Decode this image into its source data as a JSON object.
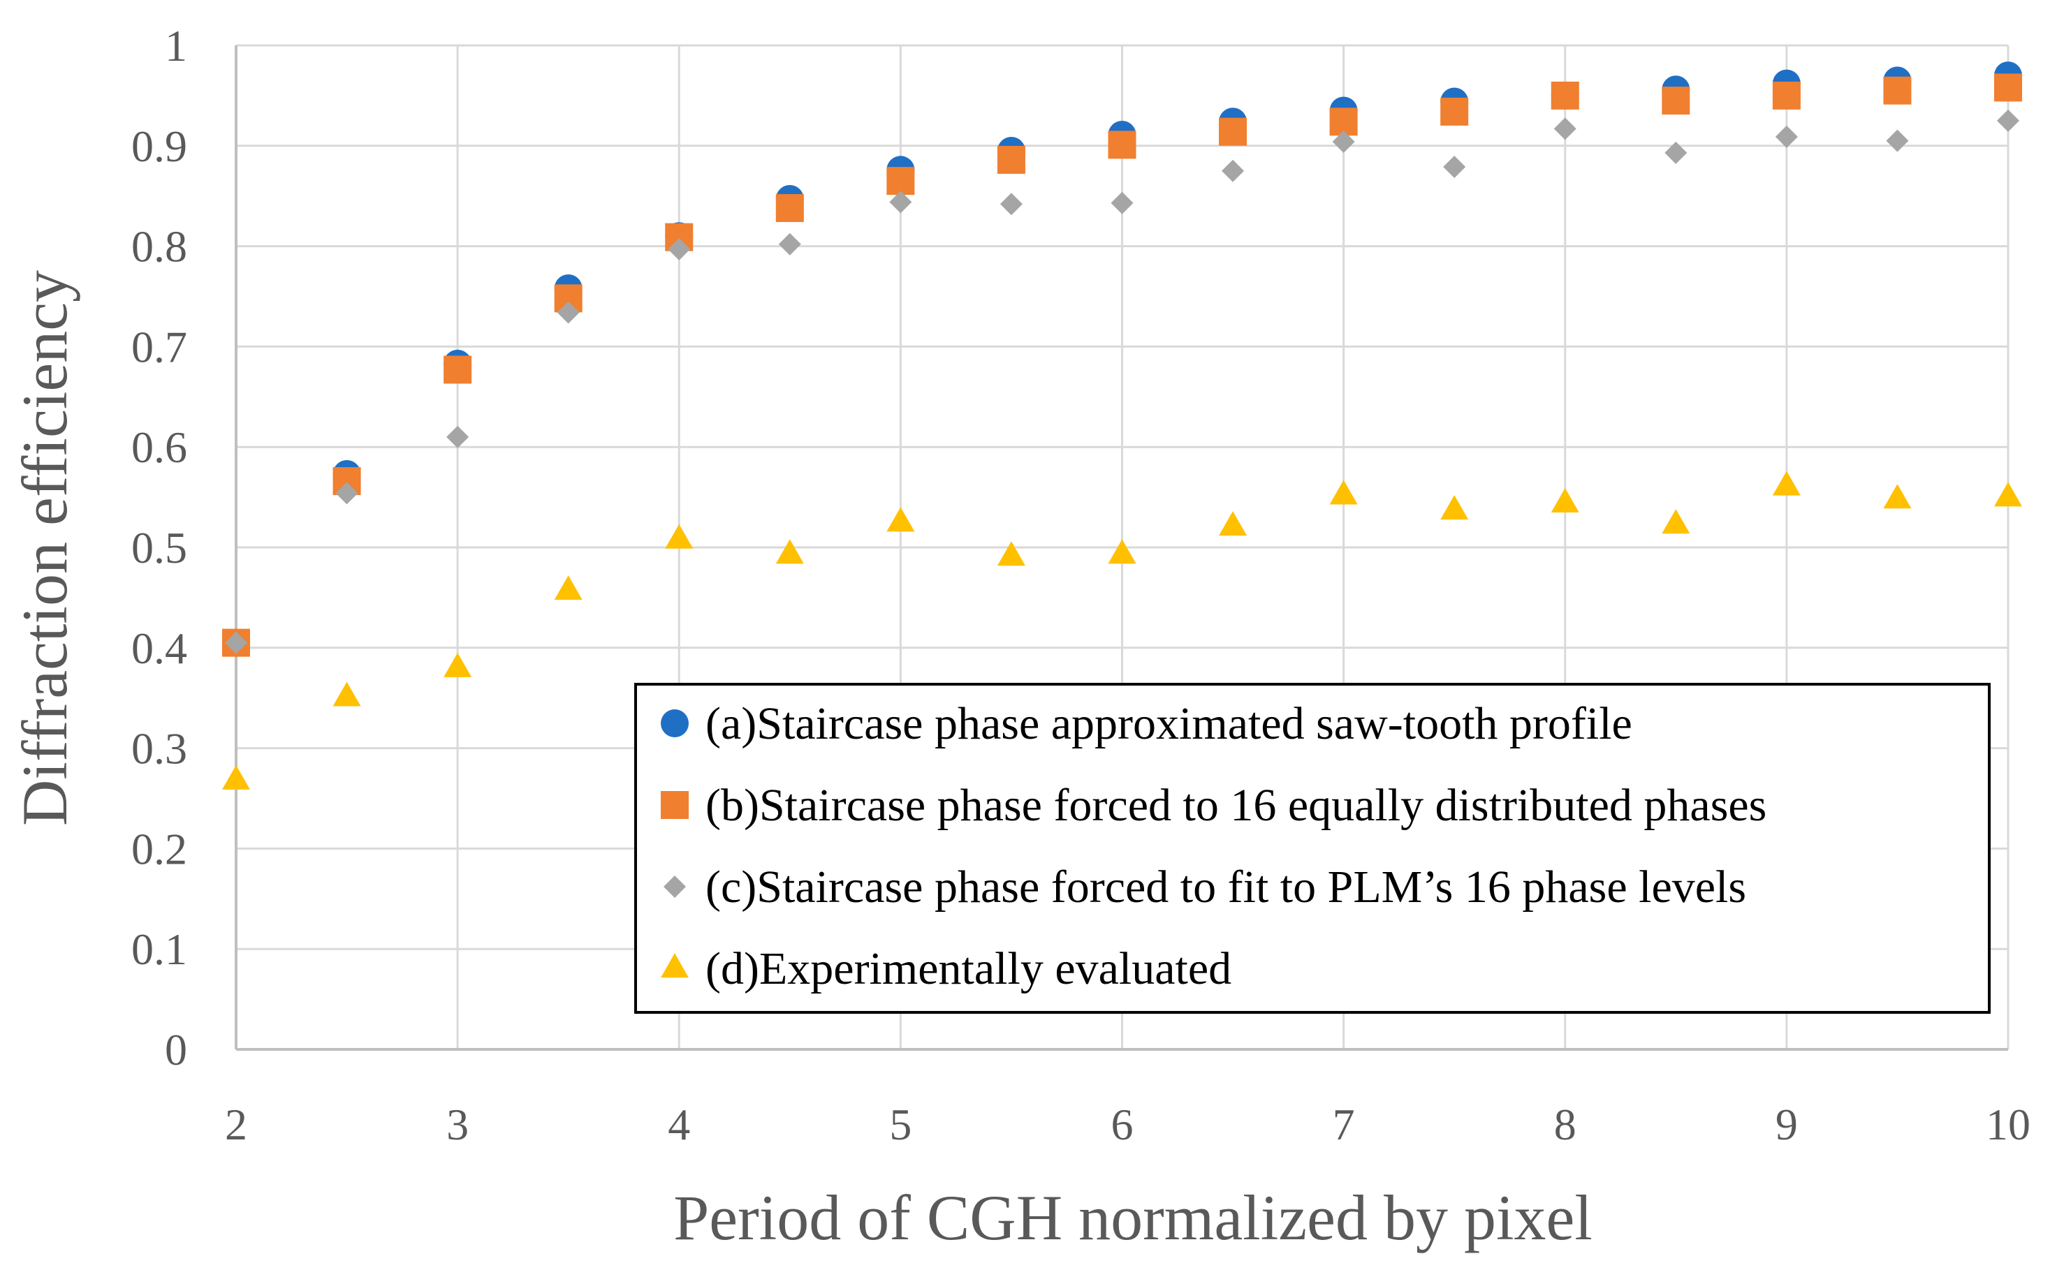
{
  "chart_data": {
    "type": "scatter",
    "title": "",
    "xlabel": "Period of CGH normalized by pixel",
    "ylabel": "Diffraction efficiency",
    "xlim": [
      2,
      10
    ],
    "ylim": [
      0,
      1
    ],
    "x_ticks": [
      "2",
      "3",
      "4",
      "5",
      "6",
      "7",
      "8",
      "9",
      "10"
    ],
    "y_ticks": [
      "0",
      "0.1",
      "0.2",
      "0.3",
      "0.4",
      "0.5",
      "0.6",
      "0.7",
      "0.8",
      "0.9",
      "1"
    ],
    "grid": true,
    "legend_position": "bottom-right",
    "x": [
      2,
      2.5,
      3,
      3.5,
      4,
      4.5,
      5,
      5.5,
      6,
      6.5,
      7,
      7.5,
      8,
      8.5,
      9,
      9.5,
      10
    ],
    "series": [
      {
        "name": "(a)Staircase phase approximated saw-tooth profile",
        "marker": "circle",
        "color": "#1F6FC5",
        "values": [
          0.405,
          0.573,
          0.683,
          0.758,
          0.81,
          0.847,
          0.876,
          0.895,
          0.911,
          0.924,
          0.935,
          0.944,
          0.95,
          0.956,
          0.962,
          0.965,
          0.97
        ]
      },
      {
        "name": "(b)Staircase phase forced to 16 equally distributed phases",
        "marker": "square",
        "color": "#F07F2F",
        "values": [
          0.405,
          0.566,
          0.677,
          0.748,
          0.809,
          0.838,
          0.865,
          0.886,
          0.901,
          0.914,
          0.924,
          0.934,
          0.95,
          0.945,
          0.95,
          0.955,
          0.958
        ]
      },
      {
        "name": "(c)Staircase phase forced to fit to PLM’s 16 phase levels",
        "marker": "diamond",
        "color": "#A5A5A5",
        "values": [
          0.405,
          0.554,
          0.61,
          0.734,
          0.797,
          0.802,
          0.844,
          0.842,
          0.843,
          0.875,
          0.904,
          0.879,
          0.917,
          0.893,
          0.909,
          0.905,
          0.925
        ]
      },
      {
        "name": "(d)Experimentally evaluated",
        "marker": "triangle",
        "color": "#FFC000",
        "values": [
          0.268,
          0.351,
          0.38,
          0.457,
          0.508,
          0.493,
          0.525,
          0.491,
          0.493,
          0.521,
          0.552,
          0.537,
          0.544,
          0.523,
          0.561,
          0.548,
          0.55
        ]
      }
    ]
  }
}
